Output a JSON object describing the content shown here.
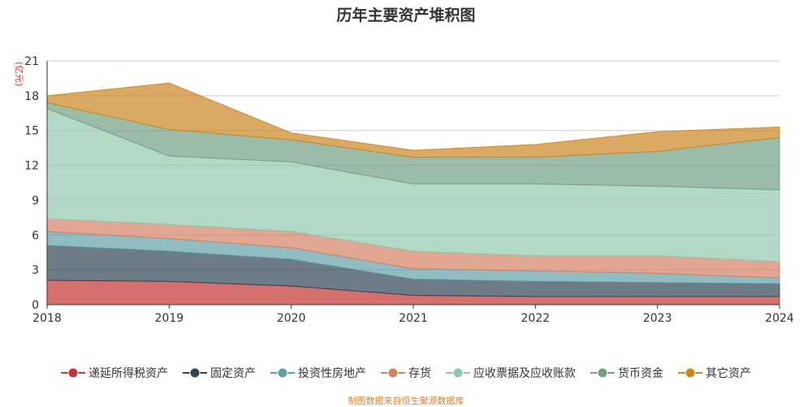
{
  "title": "历年主要资产堆积图",
  "source": "制图数据来自恒生聚源数据库",
  "chart_data": {
    "type": "area",
    "stacked": true,
    "title": "历年主要资产堆积图",
    "ylabel": "(亿元)",
    "xlabel": "",
    "categories": [
      "2018",
      "2019",
      "2020",
      "2021",
      "2022",
      "2023",
      "2024"
    ],
    "ylim": [
      0,
      21
    ],
    "yticks": [
      0,
      3,
      6,
      9,
      12,
      15,
      18,
      21
    ],
    "grid": true,
    "legend_position": "bottom",
    "series": [
      {
        "name": "递延所得税资产",
        "color": "#c23531",
        "values": [
          2.1,
          2.0,
          1.6,
          0.8,
          0.7,
          0.7,
          0.7
        ]
      },
      {
        "name": "固定资产",
        "color": "#2f4554",
        "values": [
          3.0,
          2.6,
          2.3,
          1.4,
          1.3,
          1.2,
          1.1
        ]
      },
      {
        "name": "投资性房地产",
        "color": "#61a0a8",
        "values": [
          1.2,
          1.1,
          1.0,
          0.9,
          0.9,
          0.8,
          0.5
        ]
      },
      {
        "name": "存货",
        "color": "#d48265",
        "values": [
          1.1,
          1.2,
          1.4,
          1.5,
          1.3,
          1.5,
          1.4
        ]
      },
      {
        "name": "应收票据及应收账款",
        "color": "#91c7ae",
        "values": [
          9.5,
          5.9,
          6.0,
          5.8,
          6.2,
          6.0,
          6.2
        ]
      },
      {
        "name": "货币资金",
        "color": "#749f83",
        "values": [
          0.5,
          2.3,
          1.9,
          2.3,
          2.3,
          3.0,
          4.5
        ]
      },
      {
        "name": "其它资产",
        "color": "#ca8622",
        "values": [
          0.6,
          4.0,
          0.6,
          0.6,
          1.1,
          1.7,
          0.9
        ]
      }
    ]
  }
}
